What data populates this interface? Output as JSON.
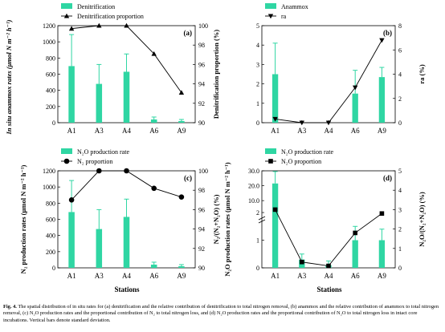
{
  "figure": {
    "caption_label": "Fig. 4.",
    "caption_text": "The spatial distribution of in situ rates for (a) denitrification and the relative contribution of denitrification to total nitrogen removal, (b) anammox and the relative contribution of anammox to total nitrogen removal, (c) N₂O production rates and the proportional contribution of N₂ to total nitrogen loss, and (d) N₂O production rates and the proportional contribution of N₂O to total nitrogen loss in intact core incubations. Vertical bars denote standard deviation.",
    "shared_left_label_top": "In situ anammox rates (µmol N m⁻² h⁻¹)",
    "shared_x_label": "Stations",
    "colors": {
      "bar": "#2fd6a3",
      "line": "#000000"
    }
  },
  "chart_data": [
    {
      "panel": "(a)",
      "type": "bar",
      "categories": [
        "A1",
        "A3",
        "A4",
        "A6",
        "A9"
      ],
      "series": [
        {
          "name": "Denitrification",
          "kind": "bar",
          "axis": "left",
          "values": [
            700,
            480,
            630,
            40,
            20
          ],
          "errors": [
            390,
            240,
            220,
            30,
            20
          ]
        },
        {
          "name": "Denitrification proportion",
          "kind": "line",
          "marker": "triangle-up",
          "axis": "right",
          "values": [
            99.7,
            100,
            100,
            97.1,
            93.1
          ]
        }
      ],
      "ylabel_right": "Denitrification proportion (%)",
      "ylim": [
        0,
        1200
      ],
      "yticks": [
        "0",
        "200",
        "400",
        "600",
        "800",
        "1000",
        "1200"
      ],
      "y2lim": [
        90,
        100
      ],
      "y2ticks": [
        "90",
        "92",
        "94",
        "96",
        "98",
        "100"
      ],
      "legend": "top-left"
    },
    {
      "panel": "(b)",
      "type": "bar",
      "categories": [
        "A1",
        "A3",
        "A4",
        "A6",
        "A9"
      ],
      "series": [
        {
          "name": "Anammox",
          "kind": "bar",
          "axis": "left",
          "values": [
            2.5,
            0,
            0,
            1.5,
            2.35
          ],
          "errors": [
            1.6,
            0,
            0,
            1.2,
            0.5
          ]
        },
        {
          "name": "ra",
          "kind": "line",
          "marker": "triangle-down",
          "axis": "right",
          "values": [
            0.3,
            0,
            0,
            2.9,
            6.8
          ]
        }
      ],
      "ylabel_right": "ra (%)",
      "ylim": [
        0,
        5
      ],
      "yticks": [
        "0",
        "1",
        "2",
        "3",
        "4",
        "5"
      ],
      "y2lim": [
        0,
        8
      ],
      "y2ticks": [
        "0",
        "2",
        "4",
        "6",
        "8"
      ],
      "legend": "top-left"
    },
    {
      "panel": "(c)",
      "type": "bar",
      "categories": [
        "A1",
        "A3",
        "A4",
        "A6",
        "A9"
      ],
      "series": [
        {
          "name": "N₂O production rate",
          "kind": "bar",
          "axis": "left",
          "values": [
            690,
            480,
            630,
            40,
            20
          ],
          "errors": [
            390,
            240,
            220,
            30,
            20
          ]
        },
        {
          "name": "N₂ proportion",
          "kind": "line",
          "marker": "circle",
          "axis": "right",
          "values": [
            97.0,
            100,
            100,
            98.2,
            97.3
          ]
        }
      ],
      "ylabel": "N₂ production rates (µmol N m⁻² h⁻¹)",
      "ylabel_right": "N₂/(N₂+N₂O) (%)",
      "ylim": [
        0,
        1200
      ],
      "yticks": [
        "0",
        "200",
        "400",
        "600",
        "800",
        "1000",
        "1200"
      ],
      "y2lim": [
        90,
        100
      ],
      "y2ticks": [
        "90",
        "92",
        "94",
        "96",
        "98",
        "100"
      ],
      "legend": "top-left"
    },
    {
      "panel": "(d)",
      "type": "bar",
      "categories": [
        "A1",
        "A3",
        "A4",
        "A6",
        "A9"
      ],
      "series": [
        {
          "name": "N₂O production rate",
          "kind": "bar",
          "axis": "left",
          "values": [
            21.5,
            0.3,
            0.1,
            1.0,
            1.0
          ],
          "errors": [
            8.0,
            0.2,
            0.15,
            0.5,
            0.4
          ]
        },
        {
          "name": "N₂O proportion",
          "kind": "line",
          "marker": "square",
          "axis": "right",
          "values": [
            3.0,
            0.3,
            0.1,
            1.8,
            2.8
          ]
        }
      ],
      "ylabel": "N₂O production rates (µmol N m⁻² h⁻¹)",
      "ylabel_right": "N₂O/(N₂+N₂O) (%)",
      "ylim_broken": [
        [
          0,
          2
        ],
        [
          2,
          30
        ]
      ],
      "yticks": [
        "0",
        "1",
        "2",
        "10.0",
        "20.0",
        "30.0"
      ],
      "y2lim": [
        0,
        5
      ],
      "y2ticks": [
        "0",
        "1",
        "2",
        "3",
        "4",
        "5"
      ],
      "legend": "top-left"
    }
  ]
}
